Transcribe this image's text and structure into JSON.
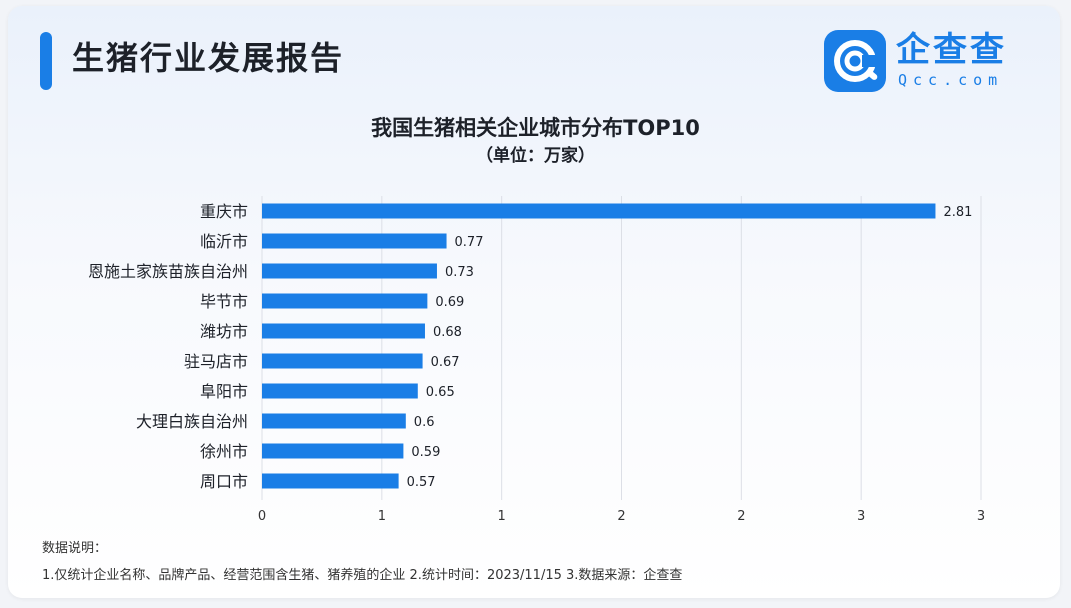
{
  "header": {
    "title": "生猪行业发展报告"
  },
  "logo": {
    "name_cn": "企查查",
    "name_en": "Qcc.com",
    "icon": "qcc-logo-icon"
  },
  "colors": {
    "accent": "#1a7ee6",
    "bar": "#1a7ee6",
    "text": "#1d2129",
    "grid": "#dcdfe6"
  },
  "chart_data": {
    "type": "bar",
    "orientation": "horizontal",
    "title": "我国生猪相关企业城市分布TOP10",
    "subtitle": "（单位：万家）",
    "categories": [
      "重庆市",
      "临沂市",
      "恩施土家族苗族自治州",
      "毕节市",
      "潍坊市",
      "驻马店市",
      "阜阳市",
      "大理白族自治州",
      "徐州市",
      "周口市"
    ],
    "values": [
      2.81,
      0.77,
      0.73,
      0.69,
      0.68,
      0.67,
      0.65,
      0.6,
      0.59,
      0.57
    ],
    "value_labels": [
      "2.81",
      "0.77",
      "0.73",
      "0.69",
      "0.68",
      "0.67",
      "0.65",
      "0.6",
      "0.59",
      "0.57"
    ],
    "x_ticks": [
      0,
      0.5,
      1,
      1.5,
      2,
      2.5,
      3
    ],
    "x_tick_labels": [
      "0",
      "1",
      "1",
      "2",
      "2",
      "3",
      "3"
    ],
    "xlim": [
      0,
      3
    ],
    "grid": true
  },
  "notes": {
    "heading": "数据说明：",
    "text": "1.仅统计企业名称、品牌产品、经营范围含生猪、猪养殖的企业  2.统计时间：2023/11/15  3.数据来源：企查查"
  }
}
